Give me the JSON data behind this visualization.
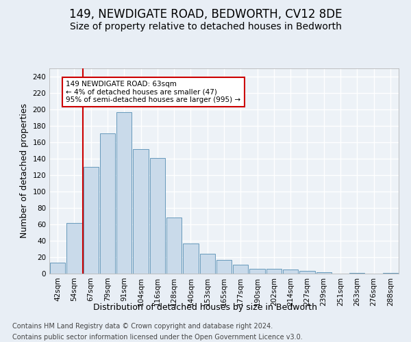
{
  "title": "149, NEWDIGATE ROAD, BEDWORTH, CV12 8DE",
  "subtitle": "Size of property relative to detached houses in Bedworth",
  "xlabel": "Distribution of detached houses by size in Bedworth",
  "ylabel": "Number of detached properties",
  "bar_labels": [
    "42sqm",
    "54sqm",
    "67sqm",
    "79sqm",
    "91sqm",
    "104sqm",
    "116sqm",
    "128sqm",
    "140sqm",
    "153sqm",
    "165sqm",
    "177sqm",
    "190sqm",
    "202sqm",
    "214sqm",
    "227sqm",
    "239sqm",
    "251sqm",
    "263sqm",
    "276sqm",
    "288sqm"
  ],
  "bar_values": [
    13,
    62,
    130,
    171,
    197,
    152,
    141,
    68,
    37,
    24,
    17,
    11,
    6,
    6,
    5,
    3,
    2,
    0,
    1,
    0,
    1
  ],
  "bar_color": "#c9daea",
  "bar_edge_color": "#6699bb",
  "vline_color": "#cc0000",
  "vline_x": 1.5,
  "annotation_lines": [
    "149 NEWDIGATE ROAD: 63sqm",
    "← 4% of detached houses are smaller (47)",
    "95% of semi-detached houses are larger (995) →"
  ],
  "annotation_box_color": "#cc0000",
  "ylim": [
    0,
    250
  ],
  "yticks": [
    0,
    20,
    40,
    60,
    80,
    100,
    120,
    140,
    160,
    180,
    200,
    220,
    240
  ],
  "footer_line1": "Contains HM Land Registry data © Crown copyright and database right 2024.",
  "footer_line2": "Contains public sector information licensed under the Open Government Licence v3.0.",
  "bg_color": "#e8eef5",
  "plot_bg_color": "#edf2f7",
  "grid_color": "#ffffff",
  "title_fontsize": 12,
  "subtitle_fontsize": 10,
  "axis_label_fontsize": 9,
  "tick_fontsize": 7.5,
  "footer_fontsize": 7
}
